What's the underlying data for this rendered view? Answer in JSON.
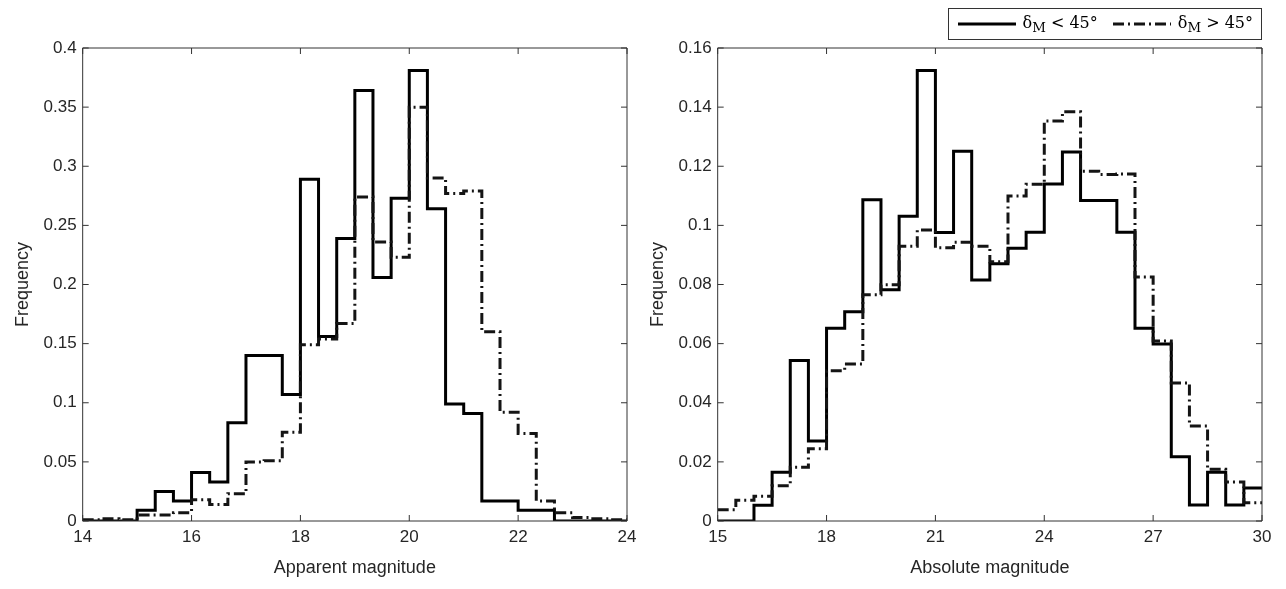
{
  "chart_data": [
    {
      "type": "histogram",
      "xlabel": "Apparent magnitude",
      "ylabel": "Frequency",
      "bins": [
        14,
        14.333,
        14.667,
        15,
        15.333,
        15.667,
        16,
        16.333,
        16.667,
        17,
        17.333,
        17.667,
        18,
        18.333,
        18.667,
        19,
        19.333,
        19.667,
        20,
        20.333,
        20.667,
        21,
        21.333,
        21.667,
        22,
        22.333,
        22.667,
        23,
        23.333,
        23.667,
        24
      ],
      "series": [
        {
          "color": "#000000",
          "line_style": "solid",
          "values": [
            0,
            0,
            0,
            0.009,
            0.025,
            0.017,
            0.041,
            0.033,
            0.083,
            0.14,
            0.14,
            0.107,
            0.289,
            0.156,
            0.239,
            0.364,
            0.206,
            0.273,
            0.381,
            0.264,
            0.099,
            0.091,
            0.017,
            0.017,
            0.009,
            0.009,
            0,
            0,
            0,
            0
          ]
        },
        {
          "color": "#141414",
          "line_style": "dashed",
          "values": [
            0.001,
            0.002,
            0.001,
            0.005,
            0.005,
            0.007,
            0.018,
            0.014,
            0.023,
            0.05,
            0.051,
            0.075,
            0.149,
            0.154,
            0.167,
            0.274,
            0.236,
            0.223,
            0.35,
            0.29,
            0.277,
            0.279,
            0.16,
            0.092,
            0.074,
            0.017,
            0.007,
            0.003,
            0.002,
            0.001
          ]
        }
      ],
      "xlim": [
        14,
        24
      ],
      "xticks": [
        14,
        16,
        18,
        20,
        22,
        24
      ],
      "ylim": [
        0,
        0.4
      ],
      "yticks": [
        0,
        0.05,
        0.1,
        0.15,
        0.2,
        0.25,
        0.3,
        0.35,
        0.4
      ]
    },
    {
      "type": "histogram",
      "xlabel": "Absolute magnitude",
      "ylabel": "Frequency",
      "bins": [
        15,
        15.5,
        16,
        16.5,
        17,
        17.5,
        18,
        18.5,
        19,
        19.5,
        20,
        20.5,
        21,
        21.5,
        22,
        22.5,
        23,
        23.5,
        24,
        24.5,
        25,
        25.5,
        26,
        26.5,
        27,
        27.5,
        28,
        28.5,
        29,
        29.5,
        30
      ],
      "series": [
        {
          "name": "δ$_{M}$ < 45°",
          "color": "#000000",
          "line_style": "solid",
          "values": [
            0,
            0,
            0.0053,
            0.0165,
            0.0543,
            0.0271,
            0.0652,
            0.0708,
            0.1087,
            0.0782,
            0.1031,
            0.1524,
            0.0976,
            0.1251,
            0.0815,
            0.087,
            0.0923,
            0.0977,
            0.114,
            0.1248,
            0.1084,
            0.1084,
            0.0977,
            0.0652,
            0.0599,
            0.0217,
            0.0054,
            0.0165,
            0.0054,
            0.0112
          ]
        },
        {
          "name": "δ$_{M}$ > 45°",
          "color": "#141414",
          "line_style": "dashed",
          "values": [
            0.0038,
            0.007,
            0.0084,
            0.0119,
            0.0182,
            0.0244,
            0.0508,
            0.0531,
            0.0765,
            0.0799,
            0.0929,
            0.0984,
            0.0924,
            0.0943,
            0.0929,
            0.0877,
            0.1099,
            0.1139,
            0.1353,
            0.1384,
            0.1183,
            0.1172,
            0.1174,
            0.0825,
            0.0609,
            0.0467,
            0.0321,
            0.0175,
            0.0132,
            0.0062
          ]
        }
      ],
      "xlim": [
        15,
        30
      ],
      "xticks": [
        15,
        18,
        21,
        24,
        27,
        30
      ],
      "ylim": [
        0,
        0.16
      ],
      "yticks": [
        0,
        0.02,
        0.04,
        0.06,
        0.08,
        0.1,
        0.12,
        0.14,
        0.16
      ],
      "legend": "top right"
    }
  ]
}
